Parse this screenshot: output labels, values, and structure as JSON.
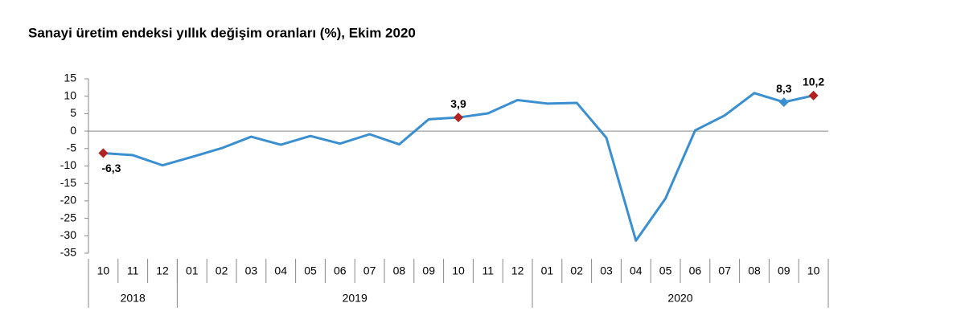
{
  "chart_data": {
    "type": "line",
    "title": "Sanayi üretim endeksi yıllık değişim oranları (%),  Ekim 2020",
    "categories": [
      "10",
      "11",
      "12",
      "01",
      "02",
      "03",
      "04",
      "05",
      "06",
      "07",
      "08",
      "09",
      "10",
      "11",
      "12",
      "01",
      "02",
      "03",
      "04",
      "05",
      "06",
      "07",
      "08",
      "09",
      "10"
    ],
    "groups": [
      {
        "label": "2018",
        "span": 3
      },
      {
        "label": "2019",
        "span": 12
      },
      {
        "label": "2020",
        "span": 10
      }
    ],
    "series": [
      {
        "color": "#3a8fd0",
        "values": [
          -6.3,
          -6.9,
          -9.8,
          -7.4,
          -4.9,
          -1.6,
          -3.9,
          -1.4,
          -3.6,
          -0.9,
          -3.8,
          3.4,
          3.9,
          5.1,
          8.9,
          7.9,
          8.1,
          -1.9,
          -31.4,
          -19.3,
          0.2,
          4.5,
          10.9,
          8.3,
          10.2
        ],
        "value_labels": [
          "-6,3",
          null,
          null,
          null,
          null,
          null,
          null,
          null,
          null,
          null,
          null,
          null,
          "3,9",
          null,
          null,
          null,
          null,
          null,
          null,
          null,
          null,
          null,
          null,
          "8,3",
          "10,2"
        ],
        "markers": [
          "#b22222",
          null,
          null,
          null,
          null,
          null,
          null,
          null,
          null,
          null,
          null,
          null,
          "#b22222",
          null,
          null,
          null,
          null,
          null,
          null,
          null,
          null,
          null,
          null,
          "#3a8fd0",
          "#b22222"
        ]
      }
    ],
    "ylim": [
      -35,
      15
    ],
    "yticks": [
      -35,
      -30,
      -25,
      -20,
      -15,
      -10,
      -5,
      0,
      5,
      10,
      15
    ]
  }
}
